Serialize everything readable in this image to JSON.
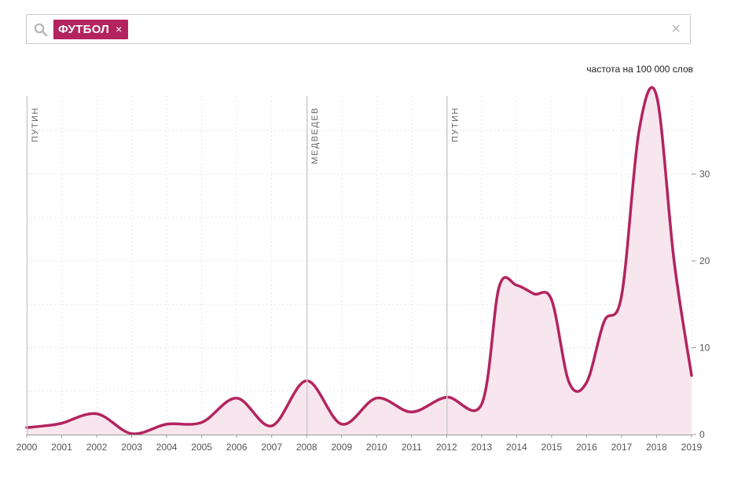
{
  "search": {
    "tag_label": "ФУТБОЛ",
    "tag_remove": "×",
    "clear": "×"
  },
  "colors": {
    "accent": "#b3245f",
    "area_fill": "#f8e6ee",
    "grid": "#e5e5e5",
    "event_line": "#cccccc"
  },
  "chart_data": {
    "type": "area",
    "unit_label": "частота на 100 000 слов",
    "x": [
      2000,
      2000.5,
      2001,
      2002,
      2003,
      2004,
      2005,
      2006,
      2007,
      2008,
      2009,
      2010,
      2011,
      2012,
      2013,
      2013.5,
      2014,
      2014.5,
      2015,
      2015.5,
      2016,
      2016.5,
      2017,
      2017.5,
      2018,
      2018.5,
      2019
    ],
    "values": [
      0.8,
      1.0,
      1.3,
      2.4,
      0.1,
      1.2,
      1.4,
      4.2,
      1.0,
      6.2,
      1.2,
      4.2,
      2.6,
      4.3,
      3.5,
      17.0,
      17.2,
      16.2,
      15.5,
      6.0,
      6.0,
      13.0,
      16.0,
      35.0,
      39.0,
      20.0,
      6.8
    ],
    "xlim": [
      2000,
      2019
    ],
    "ylim": [
      0,
      39
    ],
    "x_ticks": [
      "2000",
      "2001",
      "2002",
      "2003",
      "2004",
      "2005",
      "2006",
      "2007",
      "2008",
      "2009",
      "2010",
      "2011",
      "2012",
      "2013",
      "2014",
      "2015",
      "2016",
      "2017",
      "2018",
      "2019"
    ],
    "y_ticks": [
      0,
      10,
      20,
      30
    ],
    "events": [
      {
        "x": 2000,
        "label": "ПУТИН"
      },
      {
        "x": 2008,
        "label": "МЕДВЕДЕВ"
      },
      {
        "x": 2012,
        "label": "ПУТИН"
      }
    ],
    "grid": true
  }
}
